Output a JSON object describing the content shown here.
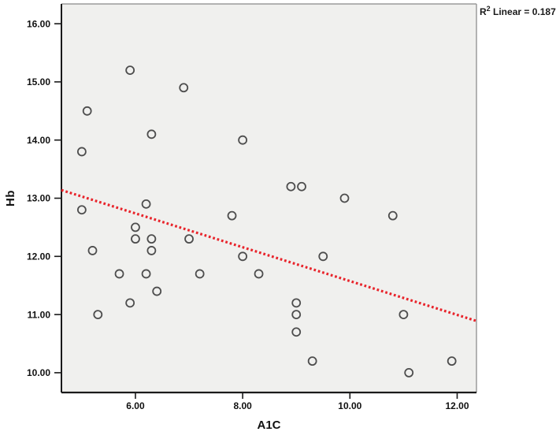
{
  "chart_data": {
    "type": "scatter",
    "title": "",
    "xlabel": "A1C",
    "ylabel": "Hb",
    "xlim": [
      4.62,
      12.36
    ],
    "ylim": [
      9.66,
      16.34
    ],
    "grid": false,
    "legend": null,
    "x_ticks": [
      {
        "value": 6,
        "label": "6.00"
      },
      {
        "value": 8,
        "label": "8.00"
      },
      {
        "value": 10,
        "label": "10.00"
      },
      {
        "value": 12,
        "label": "12.00"
      }
    ],
    "y_ticks": [
      {
        "value": 10,
        "label": "10.00"
      },
      {
        "value": 11,
        "label": "11.00"
      },
      {
        "value": 12,
        "label": "12.00"
      },
      {
        "value": 13,
        "label": "13.00"
      },
      {
        "value": 14,
        "label": "14.00"
      },
      {
        "value": 15,
        "label": "15.00"
      },
      {
        "value": 16,
        "label": "16.00"
      }
    ],
    "points": [
      [
        5.9,
        15.2
      ],
      [
        6.9,
        14.9
      ],
      [
        5.1,
        14.5
      ],
      [
        6.3,
        14.1
      ],
      [
        8.0,
        14.0
      ],
      [
        5.0,
        13.8
      ],
      [
        8.9,
        13.2
      ],
      [
        9.1,
        13.2
      ],
      [
        9.9,
        13.0
      ],
      [
        6.2,
        12.9
      ],
      [
        5.0,
        12.8
      ],
      [
        7.8,
        12.7
      ],
      [
        10.8,
        12.7
      ],
      [
        6.0,
        12.5
      ],
      [
        6.0,
        12.3
      ],
      [
        6.3,
        12.3
      ],
      [
        7.0,
        12.3
      ],
      [
        5.2,
        12.1
      ],
      [
        6.3,
        12.1
      ],
      [
        8.0,
        12.0
      ],
      [
        9.5,
        12.0
      ],
      [
        5.7,
        11.7
      ],
      [
        6.2,
        11.7
      ],
      [
        7.2,
        11.7
      ],
      [
        8.3,
        11.7
      ],
      [
        6.4,
        11.4
      ],
      [
        5.9,
        11.2
      ],
      [
        9.0,
        11.2
      ],
      [
        5.3,
        11.0
      ],
      [
        9.0,
        11.0
      ],
      [
        11.0,
        11.0
      ],
      [
        9.0,
        10.7
      ],
      [
        9.3,
        10.2
      ],
      [
        11.9,
        10.2
      ],
      [
        11.1,
        10.0
      ]
    ],
    "regression_line": {
      "x1": 4.62,
      "y1": 13.14,
      "x2": 12.36,
      "y2": 10.89,
      "style": "dotted"
    },
    "annotation": {
      "prefix": "R",
      "sup": "2",
      "rest": " Linear = 0.187"
    },
    "colors": {
      "plot_bg": "#f0f0ee",
      "figure_bg": "#ffffff",
      "marker_stroke": "#4d4d4d",
      "line": "#e8242b",
      "axis": "#1a1a1a",
      "frame": "#9b9b9b",
      "text": "#111111"
    }
  }
}
